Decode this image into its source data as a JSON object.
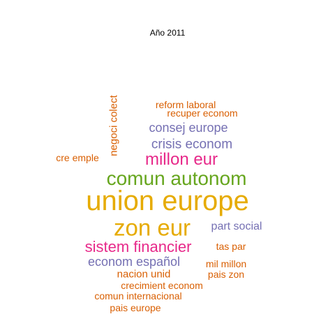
{
  "title": "Año 2011",
  "colors": {
    "orange": "#d95f02",
    "purple": "#7570b3",
    "magenta": "#e7298a",
    "green": "#66a61e",
    "gold": "#e6ab02"
  },
  "words": [
    {
      "id": "w01",
      "text": "union europe",
      "color": "gold"
    },
    {
      "id": "w02",
      "text": "zon eur",
      "color": "gold"
    },
    {
      "id": "w03",
      "text": "comun autonom",
      "color": "green"
    },
    {
      "id": "w04",
      "text": "millon eur",
      "color": "magenta"
    },
    {
      "id": "w05",
      "text": "sistem financier",
      "color": "magenta"
    },
    {
      "id": "w06",
      "text": "crisis econom",
      "color": "purple"
    },
    {
      "id": "w07",
      "text": "consej europe",
      "color": "purple"
    },
    {
      "id": "w08",
      "text": "econom español",
      "color": "purple"
    },
    {
      "id": "w09",
      "text": "part social",
      "color": "purple"
    },
    {
      "id": "w10",
      "text": "negoci colect",
      "color": "orange"
    },
    {
      "id": "w11",
      "text": "reform laboral",
      "color": "orange"
    },
    {
      "id": "w12",
      "text": "recuper econom",
      "color": "orange"
    },
    {
      "id": "w13",
      "text": "cre emple",
      "color": "orange"
    },
    {
      "id": "w14",
      "text": "tas par",
      "color": "orange"
    },
    {
      "id": "w15",
      "text": "mil millon",
      "color": "orange"
    },
    {
      "id": "w16",
      "text": "nacion unid",
      "color": "orange"
    },
    {
      "id": "w17",
      "text": "pais zon",
      "color": "orange"
    },
    {
      "id": "w18",
      "text": "crecimient econom",
      "color": "orange"
    },
    {
      "id": "w19",
      "text": "comun internacional",
      "color": "orange"
    },
    {
      "id": "w20",
      "text": "pais europe",
      "color": "orange"
    }
  ]
}
